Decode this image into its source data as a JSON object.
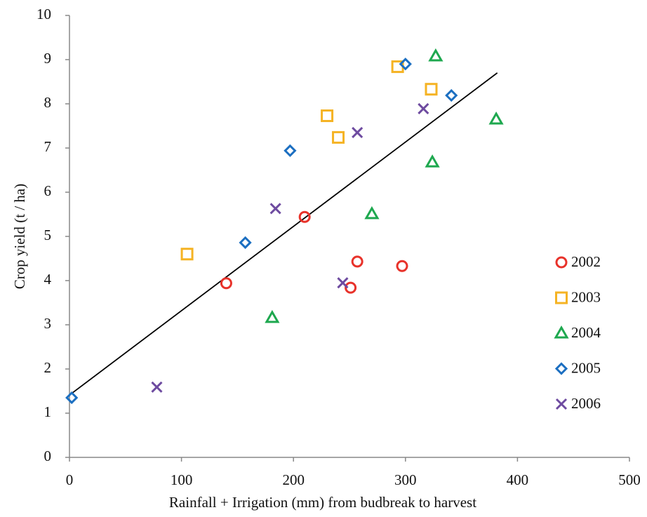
{
  "chart_data": {
    "type": "scatter",
    "xlabel": "Rainfall + Irrigation (mm) from budbreak to harvest",
    "ylabel": "Crop yield (t / ha)",
    "xlim": [
      0,
      500
    ],
    "xticks": [
      0,
      100,
      200,
      300,
      400,
      500
    ],
    "ylim": [
      0,
      10
    ],
    "yticks": [
      0,
      1,
      2,
      3,
      4,
      5,
      6,
      7,
      8,
      9,
      10
    ],
    "grid": false,
    "legend": "right",
    "series": [
      {
        "name": "2002",
        "color": "#e8322a",
        "marker": "circle",
        "x": [
          140,
          210,
          257,
          251,
          297
        ],
        "values": [
          3.94,
          5.44,
          4.43,
          3.84,
          4.33
        ]
      },
      {
        "name": "2003",
        "color": "#f5b324",
        "marker": "square",
        "x": [
          105,
          230,
          240,
          293,
          323
        ],
        "values": [
          4.6,
          7.73,
          7.24,
          8.84,
          8.33
        ]
      },
      {
        "name": "2004",
        "color": "#1ea84f",
        "marker": "triangle",
        "x": [
          181,
          270,
          324,
          327,
          381
        ],
        "values": [
          3.16,
          5.51,
          6.68,
          9.08,
          7.65
        ]
      },
      {
        "name": "2005",
        "color": "#1c6fc1",
        "marker": "diamond",
        "x": [
          2,
          157,
          197,
          300,
          341
        ],
        "values": [
          1.35,
          4.86,
          6.94,
          8.9,
          8.19
        ]
      },
      {
        "name": "2006",
        "color": "#6e4ba0",
        "marker": "x",
        "x": [
          78,
          184,
          244,
          257,
          316
        ],
        "values": [
          1.59,
          5.63,
          3.95,
          7.35,
          7.89
        ]
      }
    ],
    "trendline": {
      "color": "#000000",
      "x": [
        0,
        382
      ],
      "y": [
        1.41,
        8.7
      ]
    }
  }
}
